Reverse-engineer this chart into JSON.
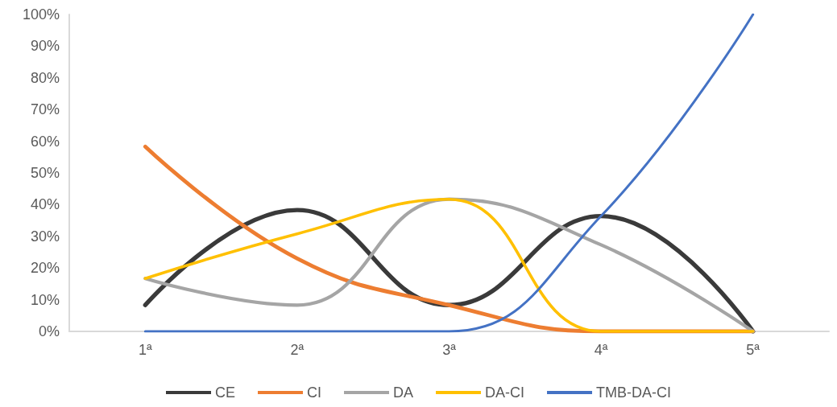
{
  "chart_data": {
    "type": "line",
    "categories": [
      "1ª",
      "2ª",
      "3ª",
      "4ª",
      "5ª"
    ],
    "series": [
      {
        "name": "CE",
        "color": "#3a3a3a",
        "values": [
          8.3,
          38.3,
          8.3,
          36.4,
          0
        ]
      },
      {
        "name": "CI",
        "color": "#ed7d31",
        "values": [
          58.3,
          23,
          8.3,
          0,
          0
        ]
      },
      {
        "name": "DA",
        "color": "#a5a5a5",
        "values": [
          16.7,
          8.3,
          41.7,
          27.3,
          0
        ]
      },
      {
        "name": "DA-CI",
        "color": "#ffc000",
        "values": [
          16.7,
          30.8,
          41.7,
          0,
          0
        ]
      },
      {
        "name": "TMB-DA-CI",
        "color": "#4472c4",
        "values": [
          0,
          0,
          0,
          36.4,
          100
        ]
      }
    ],
    "ylim": [
      0,
      100
    ],
    "yticks": [
      {
        "value": 0,
        "label": "0%"
      },
      {
        "value": 10,
        "label": "10%"
      },
      {
        "value": 20,
        "label": "20%"
      },
      {
        "value": 30,
        "label": "30%"
      },
      {
        "value": 40,
        "label": "40%"
      },
      {
        "value": 50,
        "label": "50%"
      },
      {
        "value": 60,
        "label": "60%"
      },
      {
        "value": 70,
        "label": "70%"
      },
      {
        "value": 80,
        "label": "80%"
      },
      {
        "value": 90,
        "label": "90%"
      },
      {
        "value": 100,
        "label": "100%"
      }
    ],
    "grid": false,
    "legend": "bottom",
    "marker": "none"
  }
}
